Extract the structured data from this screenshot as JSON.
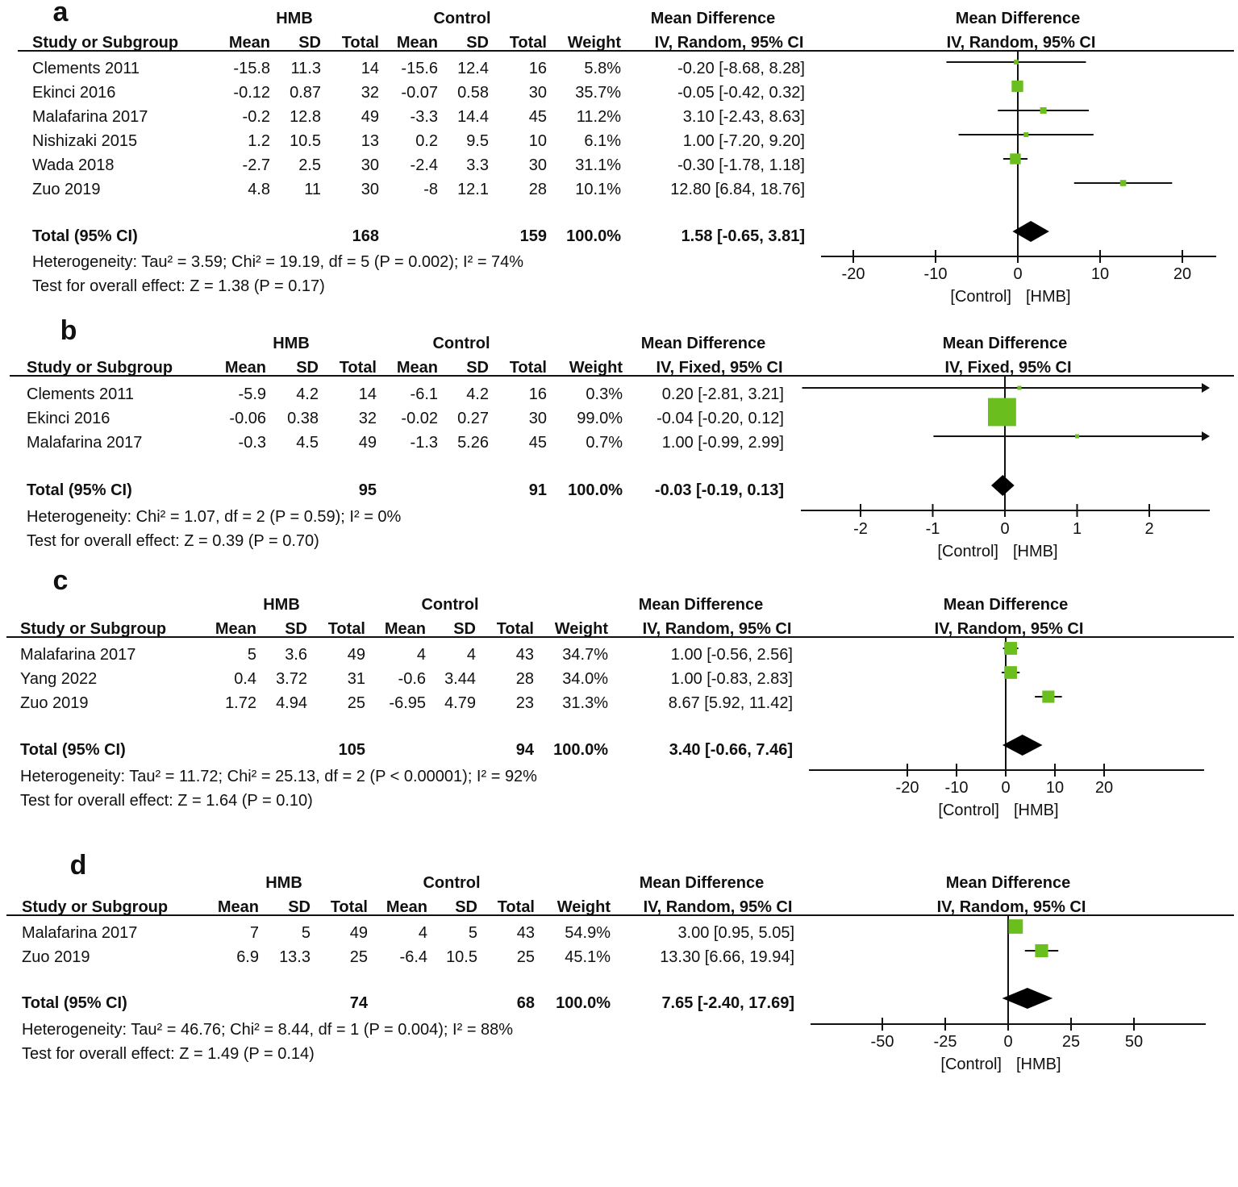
{
  "chart_data": {
    "type": "forest",
    "panels": [
      {
        "label": "a",
        "group1": "HMB",
        "group2": "Control",
        "effect_header": "Mean Difference",
        "effect_method": "IV, Random, 95% CI",
        "columns": [
          "Study or Subgroup",
          "Mean",
          "SD",
          "Total",
          "Mean",
          "SD",
          "Total",
          "Weight"
        ],
        "studies": [
          {
            "name": "Clements 2011",
            "m1": "-15.8",
            "sd1": "11.3",
            "n1": "14",
            "m2": "-15.6",
            "sd2": "12.4",
            "n2": "16",
            "weight": "5.8%",
            "ci_text": "-0.20 [-8.68, 8.28]",
            "md": -0.2,
            "lo": -8.68,
            "hi": 8.28,
            "w": 5.8
          },
          {
            "name": "Ekinci 2016",
            "m1": "-0.12",
            "sd1": "0.87",
            "n1": "32",
            "m2": "-0.07",
            "sd2": "0.58",
            "n2": "30",
            "weight": "35.7%",
            "ci_text": "-0.05 [-0.42, 0.32]",
            "md": -0.05,
            "lo": -0.42,
            "hi": 0.32,
            "w": 35.7
          },
          {
            "name": "Malafarina 2017",
            "m1": "-0.2",
            "sd1": "12.8",
            "n1": "49",
            "m2": "-3.3",
            "sd2": "14.4",
            "n2": "45",
            "weight": "11.2%",
            "ci_text": "3.10 [-2.43, 8.63]",
            "md": 3.1,
            "lo": -2.43,
            "hi": 8.63,
            "w": 11.2
          },
          {
            "name": "Nishizaki 2015",
            "m1": "1.2",
            "sd1": "10.5",
            "n1": "13",
            "m2": "0.2",
            "sd2": "9.5",
            "n2": "10",
            "weight": "6.1%",
            "ci_text": "1.00 [-7.20, 9.20]",
            "md": 1.0,
            "lo": -7.2,
            "hi": 9.2,
            "w": 6.1
          },
          {
            "name": "Wada 2018",
            "m1": "-2.7",
            "sd1": "2.5",
            "n1": "30",
            "m2": "-2.4",
            "sd2": "3.3",
            "n2": "30",
            "weight": "31.1%",
            "ci_text": "-0.30 [-1.78, 1.18]",
            "md": -0.3,
            "lo": -1.78,
            "hi": 1.18,
            "w": 31.1
          },
          {
            "name": "Zuo 2019",
            "m1": "4.8",
            "sd1": "11",
            "n1": "30",
            "m2": "-8",
            "sd2": "12.1",
            "n2": "28",
            "weight": "10.1%",
            "ci_text": "12.80 [6.84, 18.76]",
            "md": 12.8,
            "lo": 6.84,
            "hi": 18.76,
            "w": 10.1
          }
        ],
        "total": {
          "name": "Total (95% CI)",
          "n1": "168",
          "n2": "159",
          "weight": "100.0%",
          "ci_text": "1.58 [-0.65, 3.81]",
          "md": 1.58,
          "lo": -0.65,
          "hi": 3.81
        },
        "heterogeneity": "Heterogeneity: Tau² = 3.59; Chi² = 19.19, df = 5 (P = 0.002); I² = 74%",
        "overall_effect": "Test for overall effect: Z = 1.38 (P = 0.17)",
        "ticks": [
          "-20",
          "-10",
          "0",
          "10",
          "20"
        ],
        "favours_left": "[Control]",
        "favours_right": "[HMB]"
      },
      {
        "label": "b",
        "group1": "HMB",
        "group2": "Control",
        "effect_header": "Mean Difference",
        "effect_method": "IV, Fixed, 95% CI",
        "columns": [
          "Study or Subgroup",
          "Mean",
          "SD",
          "Total",
          "Mean",
          "SD",
          "Total",
          "Weight"
        ],
        "studies": [
          {
            "name": "Clements 2011",
            "m1": "-5.9",
            "sd1": "4.2",
            "n1": "14",
            "m2": "-6.1",
            "sd2": "4.2",
            "n2": "16",
            "weight": "0.3%",
            "ci_text": "0.20 [-2.81, 3.21]",
            "md": 0.2,
            "lo": -2.81,
            "hi": 3.21,
            "w": 0.3
          },
          {
            "name": "Ekinci 2016",
            "m1": "-0.06",
            "sd1": "0.38",
            "n1": "32",
            "m2": "-0.02",
            "sd2": "0.27",
            "n2": "30",
            "weight": "99.0%",
            "ci_text": "-0.04 [-0.20, 0.12]",
            "md": -0.04,
            "lo": -0.2,
            "hi": 0.12,
            "w": 99.0
          },
          {
            "name": "Malafarina 2017",
            "m1": "-0.3",
            "sd1": "4.5",
            "n1": "49",
            "m2": "-1.3",
            "sd2": "5.26",
            "n2": "45",
            "weight": "0.7%",
            "ci_text": "1.00 [-0.99, 2.99]",
            "md": 1.0,
            "lo": -0.99,
            "hi": 2.99,
            "w": 0.7
          }
        ],
        "total": {
          "name": "Total (95% CI)",
          "n1": "95",
          "n2": "91",
          "weight": "100.0%",
          "ci_text": "-0.03 [-0.19, 0.13]",
          "md": -0.03,
          "lo": -0.19,
          "hi": 0.13
        },
        "heterogeneity": "Heterogeneity: Chi² = 1.07, df = 2 (P = 0.59); I² = 0%",
        "overall_effect": "Test for overall effect: Z = 0.39 (P = 0.70)",
        "ticks": [
          "-2",
          "-1",
          "0",
          "1",
          "2"
        ],
        "favours_left": "[Control]",
        "favours_right": "[HMB]"
      },
      {
        "label": "c",
        "group1": "HMB",
        "group2": "Control",
        "effect_header": "Mean Difference",
        "effect_method": "IV, Random, 95% CI",
        "columns": [
          "Study or Subgroup",
          "Mean",
          "SD",
          "Total",
          "Mean",
          "SD",
          "Total",
          "Weight"
        ],
        "studies": [
          {
            "name": "Malafarina 2017",
            "m1": "5",
            "sd1": "3.6",
            "n1": "49",
            "m2": "4",
            "sd2": "4",
            "n2": "43",
            "weight": "34.7%",
            "ci_text": "1.00 [-0.56, 2.56]",
            "md": 1.0,
            "lo": -0.56,
            "hi": 2.56,
            "w": 34.7
          },
          {
            "name": "Yang 2022",
            "m1": "0.4",
            "sd1": "3.72",
            "n1": "31",
            "m2": "-0.6",
            "sd2": "3.44",
            "n2": "28",
            "weight": "34.0%",
            "ci_text": "1.00 [-0.83, 2.83]",
            "md": 1.0,
            "lo": -0.83,
            "hi": 2.83,
            "w": 34.0
          },
          {
            "name": "Zuo 2019",
            "m1": "1.72",
            "sd1": "4.94",
            "n1": "25",
            "m2": "-6.95",
            "sd2": "4.79",
            "n2": "23",
            "weight": "31.3%",
            "ci_text": "8.67 [5.92, 11.42]",
            "md": 8.67,
            "lo": 5.92,
            "hi": 11.42,
            "w": 31.3
          }
        ],
        "total": {
          "name": "Total (95% CI)",
          "n1": "105",
          "n2": "94",
          "weight": "100.0%",
          "ci_text": "3.40 [-0.66, 7.46]",
          "md": 3.4,
          "lo": -0.66,
          "hi": 7.46
        },
        "heterogeneity": "Heterogeneity: Tau² = 11.72; Chi² = 25.13, df = 2 (P < 0.00001); I² = 92%",
        "overall_effect": "Test for overall effect: Z = 1.64 (P = 0.10)",
        "ticks": [
          "-20",
          "-10",
          "0",
          "10",
          "20"
        ],
        "favours_left": "[Control]",
        "favours_right": "[HMB]"
      },
      {
        "label": "d",
        "group1": "HMB",
        "group2": "Control",
        "effect_header": "Mean Difference",
        "effect_method": "IV, Random, 95% CI",
        "columns": [
          "Study or Subgroup",
          "Mean",
          "SD",
          "Total",
          "Mean",
          "SD",
          "Total",
          "Weight"
        ],
        "studies": [
          {
            "name": "Malafarina 2017",
            "m1": "7",
            "sd1": "5",
            "n1": "49",
            "m2": "4",
            "sd2": "5",
            "n2": "43",
            "weight": "54.9%",
            "ci_text": "3.00 [0.95, 5.05]",
            "md": 3.0,
            "lo": 0.95,
            "hi": 5.05,
            "w": 54.9
          },
          {
            "name": "Zuo 2019",
            "m1": "6.9",
            "sd1": "13.3",
            "n1": "25",
            "m2": "-6.4",
            "sd2": "10.5",
            "n2": "25",
            "weight": "45.1%",
            "ci_text": "13.30 [6.66, 19.94]",
            "md": 13.3,
            "lo": 6.66,
            "hi": 19.94,
            "w": 45.1
          }
        ],
        "total": {
          "name": "Total (95% CI)",
          "n1": "74",
          "n2": "68",
          "weight": "100.0%",
          "ci_text": "7.65 [-2.40, 17.69]",
          "md": 7.65,
          "lo": -2.4,
          "hi": 17.69
        },
        "heterogeneity": "Heterogeneity: Tau² = 46.76; Chi² = 8.44, df = 1 (P = 0.004); I² = 88%",
        "overall_effect": "Test for overall effect: Z = 1.49 (P = 0.14)",
        "ticks": [
          "-50",
          "-25",
          "0",
          "25",
          "50"
        ],
        "favours_left": "[Control]",
        "favours_right": "[HMB]"
      }
    ],
    "colors": {
      "marker": "#6abf1e",
      "line": "#111111",
      "diamond": "#000000"
    }
  }
}
